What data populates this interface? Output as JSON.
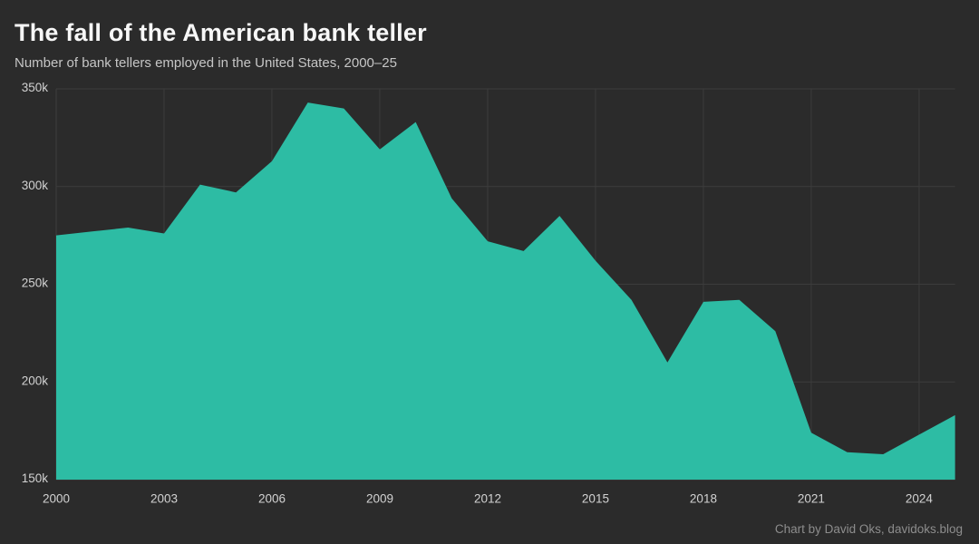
{
  "header": {
    "title": "The fall of the American bank teller",
    "subtitle": "Number of bank tellers employed in the United States, 2000–25"
  },
  "footer": {
    "credit": "Chart by David Oks, davidoks.blog"
  },
  "chart_data": {
    "type": "area",
    "title": "The fall of the American bank teller",
    "subtitle": "Number of bank tellers employed in the United States, 2000–25",
    "series_name": "Bank tellers employed in the United States",
    "unit": "tellers",
    "x": [
      2000,
      2001,
      2002,
      2003,
      2004,
      2005,
      2006,
      2007,
      2008,
      2009,
      2010,
      2011,
      2012,
      2013,
      2014,
      2015,
      2016,
      2017,
      2018,
      2019,
      2020,
      2021,
      2022,
      2023,
      2024,
      2025
    ],
    "values": [
      275000,
      277000,
      279000,
      276000,
      301000,
      297000,
      313000,
      343000,
      340000,
      319000,
      333000,
      294000,
      272000,
      267000,
      285000,
      262000,
      242000,
      210000,
      241000,
      242000,
      226000,
      174000,
      164000,
      163000,
      173000,
      183000
    ],
    "xlabel": "",
    "ylabel": "",
    "xlim": [
      2000,
      2025
    ],
    "ylim": [
      150000,
      350000
    ],
    "grid": true,
    "legend": "none",
    "y_ticks": [
      {
        "value": 150000,
        "label": "150k"
      },
      {
        "value": 200000,
        "label": "200k"
      },
      {
        "value": 250000,
        "label": "250k"
      },
      {
        "value": 300000,
        "label": "300k"
      },
      {
        "value": 350000,
        "label": "350k"
      }
    ],
    "x_ticks": [
      {
        "value": 2000,
        "label": "2000"
      },
      {
        "value": 2003,
        "label": "2003"
      },
      {
        "value": 2006,
        "label": "2006"
      },
      {
        "value": 2009,
        "label": "2009"
      },
      {
        "value": 2012,
        "label": "2012"
      },
      {
        "value": 2015,
        "label": "2015"
      },
      {
        "value": 2018,
        "label": "2018"
      },
      {
        "value": 2021,
        "label": "2021"
      },
      {
        "value": 2024,
        "label": "2024"
      }
    ],
    "colors": {
      "area_fill": "#2dbca4",
      "background": "#2b2b2b",
      "gridline": "#3c3c3c",
      "title_text": "#f7f7f7",
      "subtitle_text": "#c6c6c6",
      "tick_text": "#d2d2d2",
      "credit_text": "#8d8d8d"
    }
  }
}
